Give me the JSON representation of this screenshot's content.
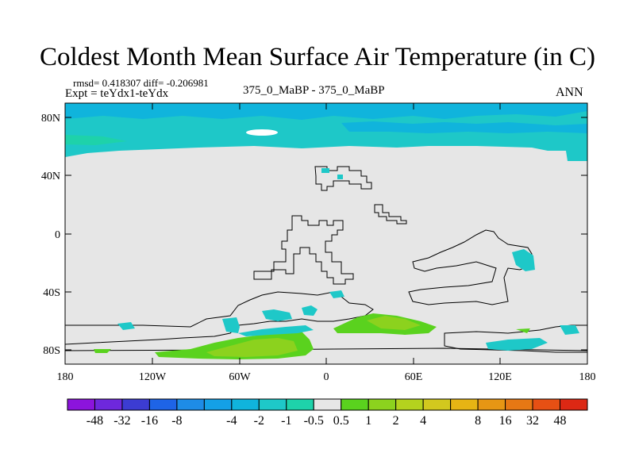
{
  "header": {
    "title": "Coldest Month Mean Surface Air Temperature (in C)",
    "stats": "rmsd= 0.418307 diff= -0.206981",
    "experiment": "Expt = teYdx1-teYdx",
    "comparison": "375_0_MaBP - 375_0_MaBP",
    "season": "ANN"
  },
  "map": {
    "lat_labels": [
      "80N",
      "40N",
      "0",
      "40S",
      "80S"
    ],
    "lon_labels": [
      "180",
      "120W",
      "60W",
      "0",
      "60E",
      "120E",
      "180"
    ],
    "background_color": "#e6e6e6"
  },
  "colorbar": {
    "colors": [
      "#8c14dc",
      "#6e28dc",
      "#3c3cd2",
      "#1e64e6",
      "#1e8ce6",
      "#14a0e6",
      "#10b4dc",
      "#1ec8c8",
      "#1ed2aa",
      "#e6e6e6",
      "#5ad21e",
      "#8cd21e",
      "#b4d21e",
      "#d2c81e",
      "#e6b414",
      "#e69614",
      "#e67814",
      "#e65014",
      "#dc2814"
    ],
    "labels": [
      "-48",
      "-32",
      "-16",
      "-8",
      "-4",
      "-2",
      "-1",
      "-0.5",
      "0.5",
      "1",
      "2",
      "4",
      "8",
      "16",
      "32",
      "48"
    ]
  }
}
